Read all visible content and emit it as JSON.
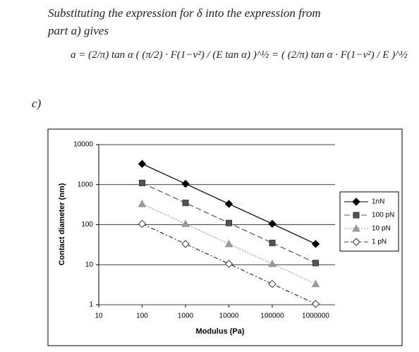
{
  "document": {
    "lines": [
      "Substituting the expression for δ into the expression from",
      "part a) gives"
    ],
    "equation": "a = (2/π) tan α ( (π/2) · F(1−ν²) / (E tan α) )^½ = ( (2/π) tan α · F(1−ν²) / E )^½",
    "part_label": "c)"
  },
  "chart_data": {
    "type": "line",
    "x": [
      100,
      1000,
      10000,
      100000,
      1000000
    ],
    "xlim": [
      10,
      2800000
    ],
    "xticks": [
      10,
      100,
      1000,
      10000,
      100000,
      1000000
    ],
    "ylim": [
      1,
      10000
    ],
    "yticks": [
      1,
      10,
      100,
      1000,
      10000
    ],
    "xlog": true,
    "ylog": true,
    "grid": true,
    "legend": "right",
    "xlabel": "Modulus (Pa)",
    "ylabel": "Contact diameter (nm)",
    "series": [
      {
        "name": "1nN",
        "color": "#000000",
        "marker": "diamond",
        "dash": "solid",
        "values": [
          3300,
          1050,
          330,
          105,
          33
        ]
      },
      {
        "name": "100 pN",
        "color": "#555555",
        "marker": "square",
        "dash": "dashed",
        "values": [
          1100,
          350,
          110,
          35,
          11
        ]
      },
      {
        "name": "10 pN",
        "color": "#999999",
        "marker": "triangle",
        "dash": "dotted",
        "values": [
          330,
          105,
          33,
          10.5,
          3.3
        ]
      },
      {
        "name": "1 pN",
        "color": "#333333",
        "marker": "open-diamond",
        "dash": "dashdot",
        "values": [
          105,
          33,
          10.5,
          3.3,
          1.05
        ]
      }
    ]
  }
}
